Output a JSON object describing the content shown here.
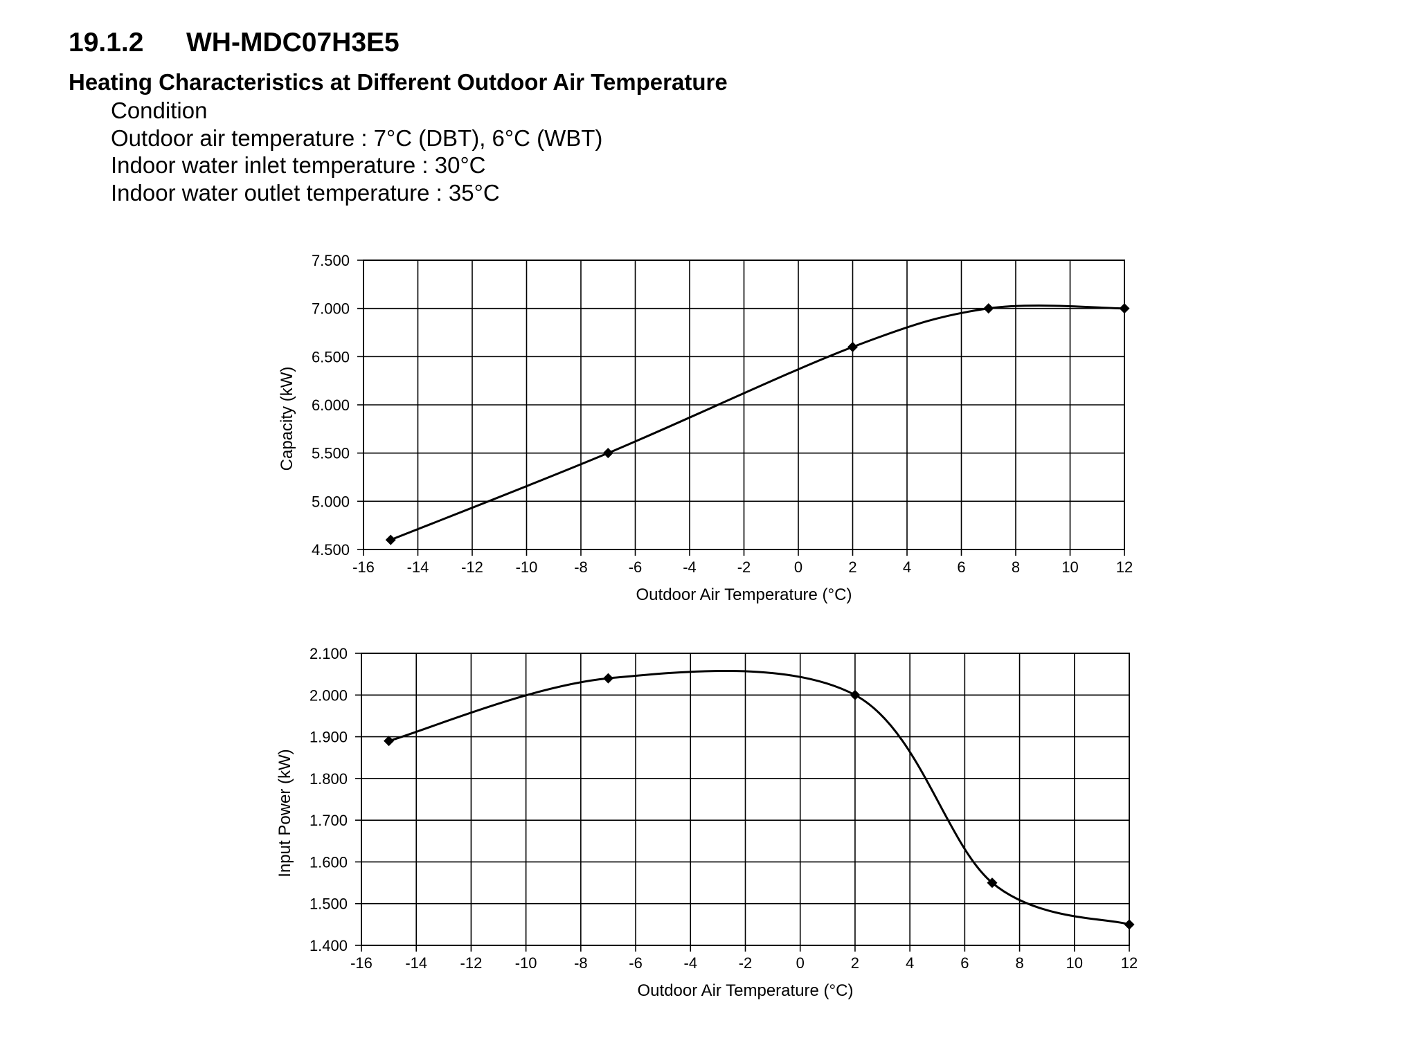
{
  "header": {
    "section_number": "19.1.2",
    "model": "WH-MDC07H3E5",
    "subtitle": "Heating Characteristics at Different Outdoor Air Temperature",
    "conditions": [
      "Condition",
      "Outdoor air temperature : 7°C (DBT), 6°C (WBT)",
      "Indoor water inlet temperature : 30°C",
      "Indoor water outlet temperature : 35°C"
    ]
  },
  "chart_data": [
    {
      "type": "line",
      "title": "",
      "xlabel": "Outdoor Air Temperature (°C)",
      "ylabel": "Capacity (kW)",
      "xlim": [
        -16,
        12
      ],
      "ylim": [
        4.5,
        7.5
      ],
      "xticks": [
        -16,
        -14,
        -12,
        -10,
        -8,
        -6,
        -4,
        -2,
        0,
        2,
        4,
        6,
        8,
        10,
        12
      ],
      "yticks": [
        4.5,
        5.0,
        5.5,
        6.0,
        6.5,
        7.0,
        7.5
      ],
      "ytick_labels": [
        "4.500",
        "5.000",
        "5.500",
        "6.000",
        "6.500",
        "7.000",
        "7.500"
      ],
      "grid": true,
      "marker": "diamond",
      "line_color": "#000000",
      "series": [
        {
          "x": [
            -15,
            -7,
            2,
            7,
            12
          ],
          "y": [
            4.6,
            5.5,
            6.6,
            7.0,
            7.0
          ]
        }
      ]
    },
    {
      "type": "line",
      "title": "",
      "xlabel": "Outdoor Air Temperature (°C)",
      "ylabel": "Input Power (kW)",
      "xlim": [
        -16,
        12
      ],
      "ylim": [
        1.4,
        2.1
      ],
      "xticks": [
        -16,
        -14,
        -12,
        -10,
        -8,
        -6,
        -4,
        -2,
        0,
        2,
        4,
        6,
        8,
        10,
        12
      ],
      "yticks": [
        1.4,
        1.5,
        1.6,
        1.7,
        1.8,
        1.9,
        2.0,
        2.1
      ],
      "ytick_labels": [
        "1.400",
        "1.500",
        "1.600",
        "1.700",
        "1.800",
        "1.900",
        "2.000",
        "2.100"
      ],
      "grid": true,
      "marker": "diamond",
      "line_color": "#000000",
      "series": [
        {
          "x": [
            -15,
            -7,
            2,
            7,
            12
          ],
          "y": [
            1.89,
            2.04,
            2.0,
            1.55,
            1.45
          ]
        }
      ]
    }
  ]
}
